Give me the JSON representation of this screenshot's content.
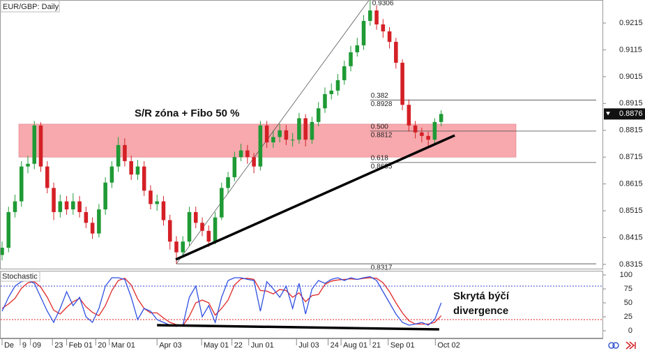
{
  "chart_data": {
    "type": "candlestick",
    "title": "EUR/GBP: Daily",
    "open": [
      0.835,
      0.8377,
      0.851,
      0.855,
      0.868,
      0.869,
      0.8833,
      0.868,
      0.86,
      0.851,
      0.855,
      0.852,
      0.855,
      0.851,
      0.847,
      0.843,
      0.852,
      0.862,
      0.868,
      0.876,
      0.87,
      0.865,
      0.868,
      0.859,
      0.854,
      0.855,
      0.848,
      0.84,
      0.836,
      0.84,
      0.851,
      0.847,
      0.844,
      0.84,
      0.849,
      0.86,
      0.864,
      0.8715,
      0.874,
      0.8715,
      0.868,
      0.8833,
      0.877,
      0.879,
      0.8815,
      0.878,
      0.878,
      0.886,
      0.878,
      0.8846,
      0.8897,
      0.895,
      0.8963,
      0.9002,
      0.9054,
      0.9106,
      0.9132,
      0.9223,
      0.9262,
      0.921,
      0.9184,
      0.9145,
      0.9067,
      0.891,
      0.8833,
      0.8807,
      0.8794,
      0.878,
      0.8846
    ],
    "high": [
      0.84,
      0.853,
      0.8575,
      0.87,
      0.872,
      0.885,
      0.8845,
      0.87,
      0.862,
      0.8575,
      0.857,
      0.858,
      0.857,
      0.853,
      0.849,
      0.854,
      0.864,
      0.87,
      0.879,
      0.8785,
      0.872,
      0.8705,
      0.87,
      0.861,
      0.8575,
      0.857,
      0.85,
      0.842,
      0.842,
      0.853,
      0.853,
      0.849,
      0.846,
      0.851,
      0.862,
      0.866,
      0.8735,
      0.8765,
      0.876,
      0.873,
      0.885,
      0.885,
      0.8815,
      0.884,
      0.8835,
      0.8805,
      0.888,
      0.8875,
      0.8865,
      0.892,
      0.8975,
      0.899,
      0.9025,
      0.9075,
      0.913,
      0.916,
      0.9245,
      0.9306,
      0.928,
      0.923,
      0.92,
      0.916,
      0.908,
      0.893,
      0.885,
      0.8825,
      0.881,
      0.886,
      0.889
    ],
    "low": [
      0.833,
      0.836,
      0.849,
      0.853,
      0.8655,
      0.867,
      0.866,
      0.858,
      0.848,
      0.849,
      0.85,
      0.85,
      0.849,
      0.845,
      0.841,
      0.8415,
      0.85,
      0.86,
      0.866,
      0.868,
      0.863,
      0.863,
      0.857,
      0.852,
      0.8515,
      0.846,
      0.837,
      0.8317,
      0.834,
      0.8385,
      0.845,
      0.842,
      0.838,
      0.839,
      0.848,
      0.858,
      0.8625,
      0.87,
      0.869,
      0.8655,
      0.8665,
      0.875,
      0.875,
      0.877,
      0.876,
      0.8755,
      0.8765,
      0.8755,
      0.8765,
      0.883,
      0.888,
      0.893,
      0.8945,
      0.8985,
      0.9035,
      0.909,
      0.9115,
      0.9205,
      0.919,
      0.916,
      0.912,
      0.9045,
      0.889,
      0.881,
      0.8785,
      0.877,
      0.8755,
      0.8765,
      0.883
    ],
    "close": [
      0.8377,
      0.851,
      0.855,
      0.868,
      0.869,
      0.8833,
      0.868,
      0.86,
      0.851,
      0.855,
      0.852,
      0.855,
      0.851,
      0.847,
      0.843,
      0.852,
      0.862,
      0.868,
      0.876,
      0.87,
      0.865,
      0.868,
      0.859,
      0.854,
      0.855,
      0.848,
      0.84,
      0.836,
      0.84,
      0.851,
      0.847,
      0.844,
      0.84,
      0.849,
      0.86,
      0.864,
      0.8715,
      0.874,
      0.8715,
      0.868,
      0.8833,
      0.877,
      0.879,
      0.8815,
      0.878,
      0.878,
      0.886,
      0.878,
      0.8846,
      0.8897,
      0.895,
      0.8963,
      0.9002,
      0.9054,
      0.9106,
      0.9132,
      0.9223,
      0.9262,
      0.921,
      0.9184,
      0.9145,
      0.9067,
      0.891,
      0.8833,
      0.8807,
      0.8794,
      0.878,
      0.8846,
      0.8876
    ],
    "up_color": "#1f9a35",
    "down_color": "#d42026",
    "ylim": [
      0.8299,
      0.9301
    ],
    "yticks": [
      0.8315,
      0.8415,
      0.8515,
      0.8615,
      0.8715,
      0.8815,
      0.8915,
      0.9015,
      0.9115,
      0.9215
    ],
    "xlim": [
      -0.32,
      93.09
    ],
    "xticks": [
      {
        "value": 0,
        "label": "De"
      },
      {
        "value": 2.8,
        "label": "9"
      },
      {
        "value": 4.4,
        "label": "09"
      },
      {
        "value": 7.8,
        "label": "23"
      },
      {
        "value": 10.0,
        "label": "Feb 01"
      },
      {
        "value": 14.5,
        "label": "20"
      },
      {
        "value": 16.6,
        "label": "Mar 01"
      },
      {
        "value": 24.0,
        "label": "Apr 03"
      },
      {
        "value": 30.9,
        "label": "May 01"
      },
      {
        "value": 35.6,
        "label": "22"
      },
      {
        "value": 38.2,
        "label": "Jun 01"
      },
      {
        "value": 45.6,
        "label": "Jul 03"
      },
      {
        "value": 50.5,
        "label": "24"
      },
      {
        "value": 52.5,
        "label": "Aug 01"
      },
      {
        "value": 57.0,
        "label": "21"
      },
      {
        "value": 59.8,
        "label": "Sep 01"
      },
      {
        "value": 67.1,
        "label": "Oct 02"
      }
    ],
    "current_price": 0.8876,
    "sr_zone": {
      "label": "S/R zóna + Fibo 50 %",
      "range": [
        0.8715,
        0.8838
      ],
      "color": "#f7a9ad"
    },
    "fibonacci": {
      "high": 0.9306,
      "low": 0.8317,
      "anchor_x": [
        27,
        57
      ],
      "levels": [
        {
          "ratio": "0.382",
          "price": 0.8928
        },
        {
          "ratio": "0.500",
          "price": 0.8812
        },
        {
          "ratio": "0.618",
          "price": 0.8695
        }
      ]
    },
    "trendline": {
      "x": [
        26.9,
        70.1
      ],
      "y": [
        0.8333,
        0.8796
      ]
    },
    "stochastic": {
      "type": "line",
      "title": "Stochastic",
      "ylim": [
        -13.75,
        107.5
      ],
      "yticks": [
        0,
        25,
        50,
        75,
        100
      ],
      "levels": [
        {
          "value": 80,
          "color": "#3344cc"
        },
        {
          "value": 20,
          "color": "#dd2222"
        }
      ],
      "series": [
        {
          "color": "#2f4fe0",
          "values": [
            35,
            60,
            80,
            88,
            90,
            85,
            60,
            35,
            15,
            40,
            70,
            45,
            60,
            25,
            15,
            40,
            80,
            95,
            95,
            92,
            60,
            20,
            40,
            35,
            20,
            15,
            10,
            8,
            10,
            60,
            80,
            25,
            45,
            15,
            60,
            90,
            95,
            95,
            92,
            90,
            35,
            88,
            75,
            60,
            80,
            40,
            85,
            30,
            75,
            90,
            85,
            92,
            95,
            90,
            95,
            92,
            95,
            97,
            90,
            70,
            50,
            30,
            15,
            10,
            12,
            15,
            10,
            20,
            50
          ]
        },
        {
          "color": "#e02828",
          "values": [
            40,
            48,
            58,
            76,
            86,
            88,
            78,
            60,
            37,
            30,
            42,
            52,
            58,
            43,
            33,
            27,
            45,
            72,
            90,
            94,
            82,
            57,
            40,
            32,
            32,
            23,
            15,
            11,
            9,
            26,
            50,
            55,
            50,
            28,
            40,
            55,
            82,
            93,
            94,
            92,
            72,
            71,
            66,
            74,
            72,
            60,
            68,
            52,
            63,
            65,
            83,
            89,
            91,
            92,
            93,
            92,
            94,
            95,
            94,
            86,
            70,
            50,
            32,
            18,
            12,
            12,
            12,
            15,
            27
          ]
        }
      ],
      "trendline": {
        "x": [
          24.0,
          67.7
        ],
        "y": [
          10,
          2.5
        ]
      },
      "annotation": [
        "Skrytá býčí",
        "divergence"
      ]
    }
  }
}
